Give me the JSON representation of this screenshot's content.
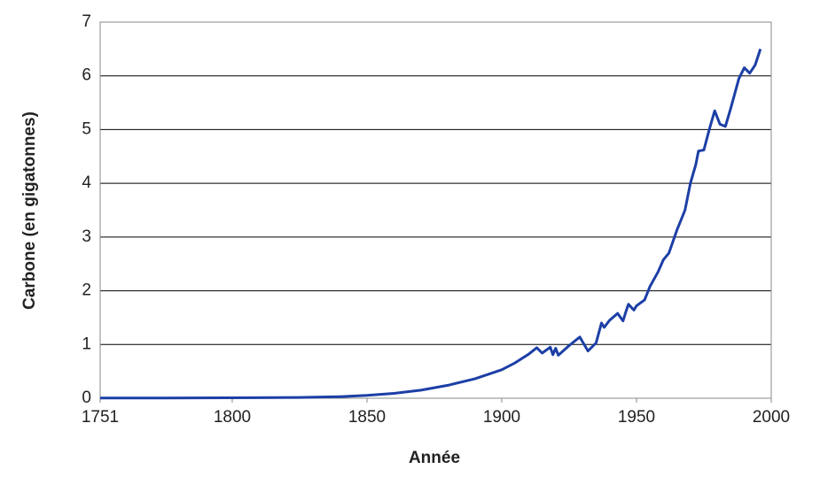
{
  "chart_data": {
    "type": "line",
    "x_label": "Année",
    "y_label": "Carbone (en gigatonnes)",
    "series": [
      {
        "color": "#1c3fa6",
        "x": [
          1751,
          1775,
          1800,
          1825,
          1840,
          1850,
          1860,
          1870,
          1880,
          1890,
          1900,
          1905,
          1910,
          1913,
          1915,
          1918,
          1919,
          1920,
          1921,
          1925,
          1929,
          1930,
          1932,
          1935,
          1937,
          1938,
          1940,
          1943,
          1945,
          1946,
          1947,
          1949,
          1950,
          1953,
          1955,
          1958,
          1960,
          1962,
          1965,
          1968,
          1970,
          1972,
          1973,
          1975,
          1977,
          1979,
          1981,
          1983,
          1985,
          1988,
          1990,
          1992,
          1994,
          1996
        ],
        "values": [
          0.003,
          0.004,
          0.008,
          0.015,
          0.03,
          0.054,
          0.09,
          0.15,
          0.24,
          0.36,
          0.53,
          0.66,
          0.82,
          0.94,
          0.84,
          0.95,
          0.81,
          0.93,
          0.8,
          0.98,
          1.14,
          1.05,
          0.88,
          1.03,
          1.4,
          1.32,
          1.45,
          1.58,
          1.44,
          1.6,
          1.75,
          1.64,
          1.72,
          1.83,
          2.08,
          2.35,
          2.58,
          2.7,
          3.13,
          3.5,
          4.0,
          4.35,
          4.6,
          4.62,
          5.0,
          5.35,
          5.1,
          5.06,
          5.4,
          5.95,
          6.15,
          6.05,
          6.2,
          6.5
        ]
      }
    ],
    "xlim": [
      1751,
      2000
    ],
    "xticks": [
      1751,
      1800,
      1850,
      1900,
      1950,
      2000
    ],
    "ylim": [
      0,
      7
    ],
    "yticks": [
      0,
      1,
      2,
      3,
      4,
      5,
      6,
      7
    ],
    "grid": true
  }
}
